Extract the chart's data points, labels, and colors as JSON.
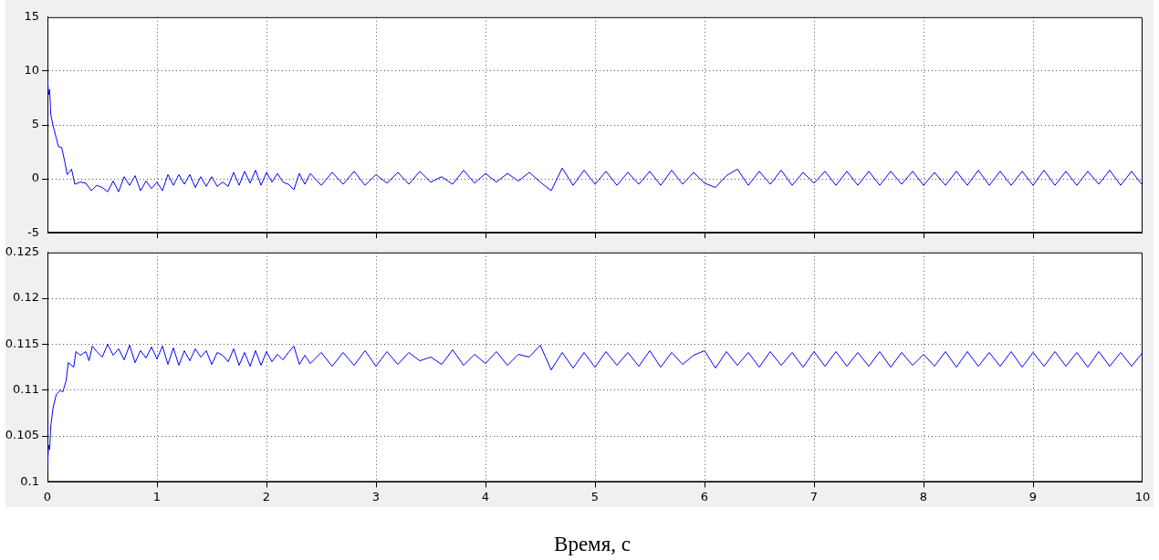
{
  "chart_data": [
    {
      "type": "line",
      "tick_labels": "y",
      "grid": true,
      "marker": "none",
      "xlim": [
        0,
        10
      ],
      "xticks": [
        0,
        1,
        2,
        3,
        4,
        5,
        6,
        7,
        8,
        9,
        10
      ],
      "ylim": [
        -5,
        15
      ],
      "yticks": [
        -5,
        0,
        5,
        10,
        15
      ],
      "series": [
        {
          "color": "#0000ff",
          "x": [
            0,
            0.01,
            0.02,
            0.03,
            0.05,
            0.08,
            0.1,
            0.13,
            0.16,
            0.18,
            0.22,
            0.25,
            0.3,
            0.35,
            0.4,
            0.45,
            0.5,
            0.55,
            0.6,
            0.65,
            0.7,
            0.75,
            0.8,
            0.85,
            0.9,
            0.95,
            1.0,
            1.05,
            1.1,
            1.15,
            1.2,
            1.25,
            1.3,
            1.35,
            1.4,
            1.45,
            1.5,
            1.55,
            1.6,
            1.65,
            1.7,
            1.75,
            1.8,
            1.85,
            1.9,
            1.95,
            2.0,
            2.05,
            2.1,
            2.15,
            2.2,
            2.25,
            2.3,
            2.35,
            2.4,
            2.5,
            2.6,
            2.7,
            2.8,
            2.9,
            3.0,
            3.1,
            3.2,
            3.3,
            3.4,
            3.5,
            3.6,
            3.7,
            3.8,
            3.9,
            4.0,
            4.1,
            4.2,
            4.3,
            4.4,
            4.5,
            4.6,
            4.7,
            4.8,
            4.9,
            5.0,
            5.1,
            5.2,
            5.3,
            5.4,
            5.5,
            5.6,
            5.7,
            5.8,
            5.9,
            6.0,
            6.1,
            6.2,
            6.3,
            6.4,
            6.5,
            6.6,
            6.7,
            6.8,
            6.9,
            7.0,
            7.1,
            7.2,
            7.3,
            7.4,
            7.5,
            7.6,
            7.7,
            7.8,
            7.9,
            8.0,
            8.1,
            8.2,
            8.3,
            8.4,
            8.5,
            8.6,
            8.7,
            8.8,
            8.9,
            9.0,
            9.1,
            9.2,
            9.3,
            9.4,
            9.5,
            9.6,
            9.7,
            9.8,
            9.9,
            10.0
          ],
          "values": [
            9.5,
            7.8,
            8.3,
            6,
            5,
            3.8,
            3,
            2.9,
            1.5,
            0.4,
            0.9,
            -0.5,
            -0.3,
            -0.4,
            -1.1,
            -0.6,
            -0.8,
            -1.2,
            -0.2,
            -1.2,
            0.2,
            -0.6,
            0.3,
            -1.1,
            -0.2,
            -0.9,
            -0.3,
            -1.1,
            0.4,
            -0.6,
            0.4,
            -0.5,
            0.4,
            -0.8,
            0.2,
            -0.7,
            0.2,
            -0.7,
            -0.3,
            -0.7,
            0.6,
            -0.6,
            0.7,
            -0.4,
            0.8,
            -0.6,
            0.6,
            -0.3,
            0.5,
            -0.3,
            -0.5,
            -1.0,
            0.5,
            -0.5,
            0.5,
            -0.6,
            0.6,
            -0.5,
            0.7,
            -0.6,
            0.4,
            -0.4,
            0.6,
            -0.5,
            0.7,
            -0.3,
            0.2,
            -0.5,
            0.8,
            -0.4,
            0.5,
            -0.3,
            0.5,
            -0.2,
            0.6,
            -0.3,
            -1.1,
            1.0,
            -0.6,
            0.8,
            -0.5,
            0.7,
            -0.6,
            0.6,
            -0.5,
            0.7,
            -0.6,
            0.8,
            -0.5,
            0.6,
            -0.4,
            -0.8,
            0.3,
            0.9,
            -0.6,
            0.7,
            -0.5,
            0.8,
            -0.6,
            0.6,
            -0.4,
            0.7,
            -0.6,
            0.7,
            -0.6,
            0.7,
            -0.6,
            0.7,
            -0.5,
            0.7,
            -0.6,
            0.6,
            -0.6,
            0.7,
            -0.6,
            0.8,
            -0.6,
            0.7,
            -0.6,
            0.7,
            -0.6,
            0.8,
            -0.6,
            0.7,
            -0.6,
            0.7,
            -0.5,
            0.8,
            -0.6,
            0.7,
            -0.6
          ]
        }
      ]
    },
    {
      "type": "line",
      "grid": true,
      "marker": "none",
      "xlabel": "Время, с",
      "xlim": [
        0,
        10
      ],
      "xticks": [
        0,
        1,
        2,
        3,
        4,
        5,
        6,
        7,
        8,
        9,
        10
      ],
      "ylim": [
        0.1,
        0.125
      ],
      "yticks": [
        0.1,
        0.105,
        0.11,
        0.115,
        0.12,
        0.125
      ],
      "series": [
        {
          "color": "#0000ff",
          "x": [
            0,
            0.01,
            0.02,
            0.03,
            0.05,
            0.08,
            0.12,
            0.14,
            0.17,
            0.19,
            0.24,
            0.26,
            0.3,
            0.35,
            0.38,
            0.41,
            0.45,
            0.5,
            0.55,
            0.6,
            0.65,
            0.7,
            0.75,
            0.8,
            0.85,
            0.9,
            0.95,
            1.0,
            1.05,
            1.1,
            1.15,
            1.2,
            1.25,
            1.3,
            1.35,
            1.4,
            1.45,
            1.5,
            1.55,
            1.6,
            1.65,
            1.7,
            1.75,
            1.8,
            1.85,
            1.9,
            1.95,
            2.0,
            2.05,
            2.1,
            2.15,
            2.2,
            2.25,
            2.3,
            2.35,
            2.4,
            2.5,
            2.6,
            2.7,
            2.8,
            2.9,
            3.0,
            3.1,
            3.2,
            3.3,
            3.4,
            3.5,
            3.6,
            3.7,
            3.8,
            3.9,
            4.0,
            4.1,
            4.2,
            4.3,
            4.4,
            4.5,
            4.6,
            4.7,
            4.8,
            4.9,
            5.0,
            5.1,
            5.2,
            5.3,
            5.4,
            5.5,
            5.6,
            5.7,
            5.8,
            5.9,
            6.0,
            6.1,
            6.2,
            6.3,
            6.4,
            6.5,
            6.6,
            6.7,
            6.8,
            6.9,
            7.0,
            7.1,
            7.2,
            7.3,
            7.4,
            7.5,
            7.6,
            7.7,
            7.8,
            7.9,
            8.0,
            8.1,
            8.2,
            8.3,
            8.4,
            8.5,
            8.6,
            8.7,
            8.8,
            8.9,
            9.0,
            9.1,
            9.2,
            9.3,
            9.4,
            9.5,
            9.6,
            9.7,
            9.8,
            9.9,
            10.0
          ],
          "values": [
            0.1015,
            0.104,
            0.1035,
            0.106,
            0.108,
            0.1095,
            0.11,
            0.1098,
            0.111,
            0.113,
            0.1125,
            0.1142,
            0.1138,
            0.1142,
            0.1132,
            0.1148,
            0.1142,
            0.1136,
            0.115,
            0.1138,
            0.1145,
            0.1133,
            0.1149,
            0.113,
            0.1143,
            0.1135,
            0.1147,
            0.1134,
            0.1148,
            0.1128,
            0.1146,
            0.1127,
            0.1143,
            0.1132,
            0.1145,
            0.1136,
            0.1143,
            0.1128,
            0.1141,
            0.1138,
            0.1131,
            0.1145,
            0.1127,
            0.1141,
            0.1126,
            0.1143,
            0.1127,
            0.1142,
            0.1131,
            0.1139,
            0.1133,
            0.1141,
            0.1148,
            0.1128,
            0.1138,
            0.1129,
            0.1141,
            0.1126,
            0.1141,
            0.1127,
            0.1143,
            0.1126,
            0.1142,
            0.1128,
            0.1141,
            0.1132,
            0.1136,
            0.1128,
            0.1144,
            0.1127,
            0.1139,
            0.1129,
            0.1142,
            0.1127,
            0.1139,
            0.1136,
            0.1149,
            0.1122,
            0.1141,
            0.1124,
            0.1141,
            0.1125,
            0.1142,
            0.1127,
            0.1141,
            0.1126,
            0.1143,
            0.1125,
            0.1141,
            0.1128,
            0.1138,
            0.1143,
            0.1124,
            0.1142,
            0.1127,
            0.1141,
            0.1125,
            0.1142,
            0.1127,
            0.1141,
            0.1125,
            0.1142,
            0.1126,
            0.1142,
            0.1126,
            0.1141,
            0.1126,
            0.1142,
            0.1125,
            0.1141,
            0.1127,
            0.1139,
            0.1126,
            0.1142,
            0.1125,
            0.1142,
            0.1126,
            0.1141,
            0.1126,
            0.1142,
            0.1125,
            0.1141,
            0.1126,
            0.1142,
            0.1126,
            0.1141,
            0.1125,
            0.1142,
            0.1126,
            0.1141,
            0.1126,
            0.1141
          ]
        }
      ]
    }
  ]
}
